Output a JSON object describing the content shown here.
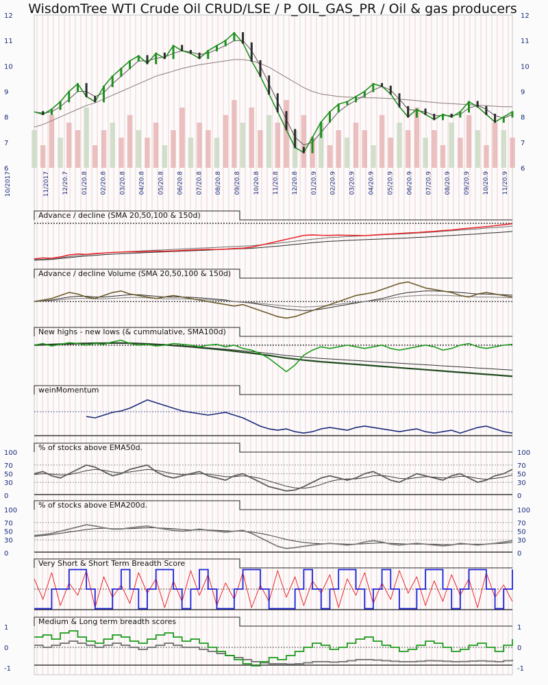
{
  "chart_data": {
    "type": "line",
    "title": "WisdomTree WTI Crude Oil CRUD/LSE / P_OIL_GAS_PR / Oil & gas producers",
    "x_ticks": [
      "10/2017",
      "11/2017",
      "12/20.7",
      "01/20.8",
      "02/20.8",
      "03/20.8",
      "04/20.8",
      "05/20.8",
      "06/20.8",
      "07/20.8",
      "08/20.8",
      "09/20.8",
      "10/20.8",
      "11/20.8",
      "12/20.8",
      "01/20.9",
      "02/20.9",
      "03/20.9",
      "04/20.9",
      "05/20.9",
      "06/20.9",
      "07/20.9",
      "08/20.9",
      "09/20.9",
      "10/20.9",
      "11/20.9"
    ],
    "price_panel": {
      "ylim": [
        6,
        12
      ],
      "y_ticks": [
        "6",
        "7",
        "8",
        "9",
        "10",
        "11",
        "12"
      ],
      "price": [
        8.2,
        8.1,
        8.3,
        8.6,
        9.0,
        9.3,
        8.8,
        8.6,
        9.2,
        9.6,
        9.9,
        10.2,
        10.4,
        10.1,
        10.5,
        10.3,
        10.8,
        10.6,
        10.5,
        10.3,
        10.6,
        10.8,
        11.0,
        11.3,
        10.9,
        10.2,
        9.6,
        8.9,
        8.2,
        7.5,
        6.8,
        6.6,
        7.2,
        7.8,
        8.2,
        8.5,
        8.6,
        8.8,
        9.0,
        9.3,
        9.2,
        8.9,
        8.4,
        8.0,
        8.3,
        8.1,
        7.9,
        8.1,
        8.0,
        8.2,
        8.6,
        8.4,
        8.1,
        7.8,
        8.0,
        8.2
      ],
      "ma_fast": [
        8.2,
        8.15,
        8.2,
        8.4,
        8.7,
        9.0,
        9.0,
        8.8,
        8.95,
        9.3,
        9.6,
        9.9,
        10.2,
        10.2,
        10.3,
        10.35,
        10.5,
        10.6,
        10.55,
        10.45,
        10.5,
        10.65,
        10.8,
        11.0,
        11.0,
        10.6,
        10.0,
        9.3,
        8.6,
        7.9,
        7.2,
        6.9,
        7.0,
        7.4,
        7.8,
        8.2,
        8.45,
        8.65,
        8.85,
        9.05,
        9.2,
        9.05,
        8.7,
        8.3,
        8.25,
        8.2,
        8.05,
        8.05,
        8.05,
        8.1,
        8.35,
        8.45,
        8.3,
        8.05,
        7.95,
        8.1
      ],
      "ma_slow": [
        7.6,
        7.7,
        7.85,
        8.0,
        8.15,
        8.3,
        8.45,
        8.55,
        8.7,
        8.85,
        9.0,
        9.15,
        9.3,
        9.45,
        9.6,
        9.7,
        9.8,
        9.9,
        9.98,
        10.05,
        10.1,
        10.15,
        10.2,
        10.25,
        10.25,
        10.2,
        10.1,
        9.95,
        9.75,
        9.55,
        9.35,
        9.15,
        9.0,
        8.9,
        8.85,
        8.8,
        8.78,
        8.76,
        8.75,
        8.75,
        8.74,
        8.72,
        8.7,
        8.67,
        8.64,
        8.6,
        8.57,
        8.54,
        8.52,
        8.5,
        8.48,
        8.46,
        8.44,
        8.42,
        8.4,
        8.4
      ],
      "volume": [
        0.5,
        0.3,
        0.7,
        0.4,
        0.6,
        0.5,
        0.8,
        0.3,
        0.5,
        0.6,
        0.4,
        0.7,
        0.5,
        0.4,
        0.6,
        0.3,
        0.5,
        0.8,
        0.4,
        0.6,
        0.5,
        0.4,
        0.7,
        0.9,
        0.6,
        0.8,
        0.5,
        0.7,
        0.6,
        0.9,
        0.5,
        0.7,
        0.4,
        0.6,
        0.3,
        0.5,
        0.4,
        0.6,
        0.5,
        0.3,
        0.7,
        0.4,
        0.6,
        0.5,
        0.8,
        0.4,
        0.5,
        0.3,
        0.6,
        0.4,
        0.7,
        0.5,
        0.3,
        0.6,
        0.5,
        0.4
      ]
    },
    "panels": [
      {
        "name": "Advance / decline (SMA 20,50,100 & 150d)",
        "line_color": "#e8262b",
        "series": [
          0.25,
          0.3,
          0.28,
          0.35,
          0.45,
          0.5,
          0.48,
          0.52,
          0.55,
          0.58,
          0.6,
          0.62,
          0.61,
          0.63,
          0.65,
          0.64,
          0.66,
          0.68,
          0.7,
          0.72,
          0.74,
          0.73,
          0.75,
          0.78,
          0.8,
          0.85,
          0.95,
          1.05,
          1.15,
          1.25,
          1.35,
          1.45,
          1.48,
          1.46,
          1.45,
          1.47,
          1.46,
          1.45,
          1.44,
          1.47,
          1.5,
          1.52,
          1.55,
          1.58,
          1.6,
          1.63,
          1.66,
          1.7,
          1.73,
          1.78,
          1.82,
          1.86,
          1.9,
          1.95,
          2.0,
          2.05
        ],
        "ma": [
          0.2,
          0.22,
          0.25,
          0.3,
          0.35,
          0.4,
          0.44,
          0.48,
          0.52,
          0.55,
          0.57,
          0.6,
          0.62,
          0.64,
          0.66,
          0.68,
          0.7,
          0.72,
          0.74,
          0.76,
          0.78,
          0.8,
          0.82,
          0.84,
          0.86,
          0.88,
          0.92,
          0.96,
          1.0,
          1.05,
          1.1,
          1.15,
          1.2,
          1.24,
          1.28,
          1.3,
          1.33,
          1.35,
          1.37,
          1.39,
          1.41,
          1.43,
          1.45,
          1.47,
          1.5,
          1.52,
          1.55,
          1.58,
          1.61,
          1.64,
          1.67,
          1.7,
          1.74,
          1.77,
          1.8,
          1.84
        ]
      },
      {
        "name": "Advance / decline Volume (SMA 20,50,100 & 150d)",
        "line_color": "#6b5a2a",
        "series": [
          0.0,
          0.1,
          0.2,
          0.4,
          0.6,
          0.5,
          0.3,
          0.2,
          0.4,
          0.6,
          0.7,
          0.5,
          0.4,
          0.3,
          0.2,
          0.3,
          0.4,
          0.3,
          0.2,
          0.1,
          0.0,
          -0.1,
          -0.2,
          -0.3,
          -0.2,
          -0.4,
          -0.6,
          -0.8,
          -1.0,
          -1.1,
          -1.0,
          -0.8,
          -0.6,
          -0.4,
          -0.2,
          0.0,
          0.2,
          0.4,
          0.5,
          0.6,
          0.8,
          1.0,
          1.2,
          1.3,
          1.1,
          0.9,
          0.8,
          0.7,
          0.6,
          0.4,
          0.3,
          0.5,
          0.6,
          0.5,
          0.4,
          0.3
        ],
        "ma": [
          0.0,
          0.05,
          0.1,
          0.2,
          0.3,
          0.35,
          0.35,
          0.3,
          0.3,
          0.35,
          0.4,
          0.45,
          0.45,
          0.4,
          0.35,
          0.3,
          0.3,
          0.3,
          0.28,
          0.25,
          0.2,
          0.15,
          0.1,
          0.0,
          -0.05,
          -0.1,
          -0.2,
          -0.3,
          -0.4,
          -0.5,
          -0.55,
          -0.6,
          -0.58,
          -0.5,
          -0.4,
          -0.3,
          -0.2,
          -0.1,
          0.0,
          0.1,
          0.2,
          0.35,
          0.5,
          0.6,
          0.65,
          0.7,
          0.7,
          0.68,
          0.65,
          0.6,
          0.55,
          0.5,
          0.5,
          0.48,
          0.45,
          0.42
        ]
      },
      {
        "name": "New highs - new lows (& cummulative, SMA100d)",
        "line_color": "#1a9a1a",
        "series": [
          0.0,
          0.1,
          -0.05,
          0.05,
          0.15,
          0.1,
          0.0,
          0.1,
          0.05,
          0.2,
          0.3,
          0.1,
          0.0,
          0.05,
          -0.05,
          0.0,
          0.1,
          0.05,
          0.0,
          -0.1,
          0.0,
          0.05,
          -0.1,
          0.0,
          -0.2,
          -0.3,
          -0.5,
          -0.8,
          -1.2,
          -1.6,
          -1.2,
          -0.6,
          -0.3,
          -0.1,
          -0.2,
          -0.1,
          0.0,
          -0.1,
          -0.2,
          -0.1,
          0.0,
          -0.2,
          -0.3,
          -0.2,
          -0.1,
          0.0,
          -0.1,
          -0.3,
          -0.2,
          0.0,
          0.1,
          -0.1,
          -0.2,
          -0.1,
          0.0,
          0.05
        ],
        "ma": [
          0.0,
          0.02,
          0.04,
          0.06,
          0.08,
          0.1,
          0.11,
          0.12,
          0.12,
          0.13,
          0.13,
          0.12,
          0.1,
          0.08,
          0.05,
          0.02,
          -0.02,
          -0.06,
          -0.1,
          -0.15,
          -0.2,
          -0.25,
          -0.3,
          -0.36,
          -0.42,
          -0.48,
          -0.55,
          -0.62,
          -0.7,
          -0.78,
          -0.84,
          -0.9,
          -0.95,
          -1.0,
          -1.04,
          -1.08,
          -1.12,
          -1.16,
          -1.2,
          -1.24,
          -1.28,
          -1.32,
          -1.36,
          -1.4,
          -1.44,
          -1.48,
          -1.52,
          -1.56,
          -1.6,
          -1.64,
          -1.68,
          -1.72,
          -1.76,
          -1.8,
          -1.84,
          -1.88
        ]
      },
      {
        "name": "weinMomentum",
        "line_color": "#1b2a7a",
        "series": [
          null,
          null,
          null,
          null,
          null,
          null,
          -0.2,
          -0.3,
          -0.1,
          0.1,
          0.2,
          0.4,
          0.7,
          1.0,
          0.8,
          0.6,
          0.4,
          0.2,
          0.1,
          0.0,
          -0.1,
          0.0,
          0.1,
          -0.1,
          -0.3,
          -0.6,
          -0.9,
          -1.1,
          -1.2,
          -1.1,
          -1.3,
          -1.4,
          -1.3,
          -1.1,
          -1.0,
          -1.1,
          -1.2,
          -1.0,
          -0.9,
          -1.0,
          -1.1,
          -1.2,
          -1.3,
          -1.2,
          -1.1,
          -1.3,
          -1.4,
          -1.3,
          -1.2,
          -1.4,
          -1.2,
          -1.0,
          -0.9,
          -1.1,
          -1.3,
          -1.4
        ]
      },
      {
        "name": "% of stocks above EMA50d.",
        "ylim": [
          0,
          100
        ],
        "y_ticks": [
          "0",
          "30",
          "50",
          "70",
          "100"
        ],
        "line_color": "#5a5a5a",
        "series": [
          50,
          55,
          45,
          40,
          50,
          60,
          70,
          65,
          55,
          45,
          50,
          60,
          65,
          70,
          55,
          45,
          40,
          45,
          50,
          55,
          45,
          40,
          35,
          45,
          50,
          40,
          30,
          20,
          15,
          10,
          12,
          20,
          30,
          40,
          45,
          40,
          35,
          40,
          50,
          55,
          45,
          35,
          30,
          40,
          50,
          45,
          40,
          35,
          45,
          50,
          40,
          30,
          35,
          45,
          50,
          60
        ],
        "ma": [
          48,
          50,
          49,
          47,
          48,
          52,
          57,
          60,
          58,
          54,
          52,
          54,
          57,
          60,
          58,
          54,
          50,
          48,
          48,
          50,
          49,
          46,
          43,
          43,
          45,
          43,
          39,
          33,
          27,
          21,
          17,
          16,
          19,
          25,
          32,
          36,
          38,
          38,
          41,
          45,
          46,
          43,
          39,
          38,
          41,
          43,
          42,
          40,
          41,
          44,
          43,
          39,
          37,
          39,
          42,
          47
        ]
      },
      {
        "name": "% of stocks above EMA200d.",
        "ylim": [
          0,
          100
        ],
        "y_ticks": [
          "0",
          "30",
          "50",
          "70",
          "100"
        ],
        "line_color": "#7a7a7a",
        "series": [
          40,
          42,
          45,
          50,
          55,
          60,
          65,
          62,
          58,
          55,
          55,
          58,
          60,
          62,
          58,
          55,
          52,
          50,
          52,
          55,
          52,
          50,
          48,
          50,
          52,
          45,
          35,
          25,
          15,
          10,
          12,
          15,
          18,
          20,
          22,
          20,
          18,
          20,
          25,
          28,
          25,
          20,
          18,
          20,
          22,
          20,
          18,
          16,
          18,
          22,
          20,
          18,
          20,
          22,
          25,
          28
        ],
        "ma": [
          38,
          40,
          42,
          45,
          48,
          51,
          54,
          56,
          57,
          56,
          56,
          56,
          57,
          58,
          58,
          57,
          56,
          54,
          53,
          53,
          53,
          52,
          51,
          50,
          50,
          48,
          45,
          41,
          36,
          31,
          27,
          24,
          22,
          21,
          21,
          21,
          20,
          20,
          21,
          22,
          23,
          22,
          21,
          20,
          20,
          20,
          20,
          19,
          19,
          20,
          20,
          20,
          20,
          21,
          22,
          24
        ]
      },
      {
        "name": "Very Short & Short Term Breadth Score",
        "series_red": [
          0.5,
          -0.5,
          0.8,
          -0.8,
          0.3,
          -0.3,
          0.9,
          -0.9,
          0.6,
          -0.4,
          0.2,
          -0.7,
          0.8,
          -0.2,
          0.5,
          -0.9,
          0.4,
          -0.6,
          0.9,
          -0.3,
          0.7,
          -0.8,
          0.3,
          -0.5,
          0.8,
          -0.9,
          0.2,
          -0.6,
          0.9,
          -0.4,
          0.6,
          -0.8,
          0.4,
          -0.2,
          0.7,
          -0.9,
          0.5,
          -0.3,
          0.8,
          -0.7,
          0.3,
          -0.5,
          0.9,
          -0.2,
          0.6,
          -0.8,
          0.4,
          -0.6,
          0.7,
          -0.3,
          0.5,
          -0.9,
          0.8,
          -0.4,
          0.2,
          -0.6
        ],
        "series_blue": [
          -1,
          -1,
          0,
          0,
          1,
          1,
          0,
          -1,
          -1,
          0,
          1,
          0,
          -1,
          0,
          1,
          1,
          0,
          -1,
          0,
          1,
          0,
          -1,
          -1,
          0,
          1,
          1,
          0,
          -1,
          -1,
          -1,
          0,
          1,
          0,
          -1,
          0,
          1,
          1,
          0,
          -1,
          0,
          1,
          0,
          -1,
          -1,
          0,
          1,
          1,
          0,
          -1,
          0,
          1,
          1,
          0,
          -1,
          0,
          1
        ]
      },
      {
        "name": "Medium & Long term breadth scores",
        "ylim": [
          -1,
          1
        ],
        "y_ticks": [
          "-1",
          "0",
          "1"
        ],
        "series_green": [
          0.5,
          0.6,
          0.4,
          0.7,
          0.8,
          0.5,
          0.3,
          0.2,
          0.4,
          0.6,
          0.5,
          0.3,
          0.2,
          0.4,
          0.6,
          0.7,
          0.5,
          0.3,
          0.4,
          0.2,
          0.0,
          -0.2,
          -0.4,
          -0.6,
          -0.8,
          -0.9,
          -0.7,
          -0.5,
          -0.6,
          -0.4,
          -0.2,
          0.0,
          0.2,
          0.1,
          -0.1,
          0.0,
          0.2,
          0.4,
          0.5,
          0.3,
          0.1,
          0.0,
          -0.2,
          -0.1,
          0.1,
          0.3,
          0.2,
          0.0,
          -0.2,
          -0.1,
          0.1,
          0.2,
          0.0,
          -0.2,
          0.1,
          0.4
        ],
        "series_gray": [
          0.1,
          0.0,
          0.1,
          0.2,
          0.3,
          0.2,
          0.1,
          0.0,
          0.1,
          0.2,
          0.1,
          0.0,
          -0.1,
          0.0,
          0.1,
          0.2,
          0.1,
          0.0,
          0.0,
          -0.1,
          -0.2,
          -0.3,
          -0.4,
          -0.5,
          -0.6,
          -0.7,
          -0.75,
          -0.8,
          -0.8,
          -0.82,
          -0.8,
          -0.75,
          -0.7,
          -0.7,
          -0.72,
          -0.7,
          -0.65,
          -0.6,
          -0.6,
          -0.62,
          -0.65,
          -0.68,
          -0.7,
          -0.7,
          -0.68,
          -0.65,
          -0.66,
          -0.68,
          -0.7,
          -0.69,
          -0.67,
          -0.66,
          -0.68,
          -0.7,
          -0.65,
          -0.6
        ]
      }
    ]
  }
}
